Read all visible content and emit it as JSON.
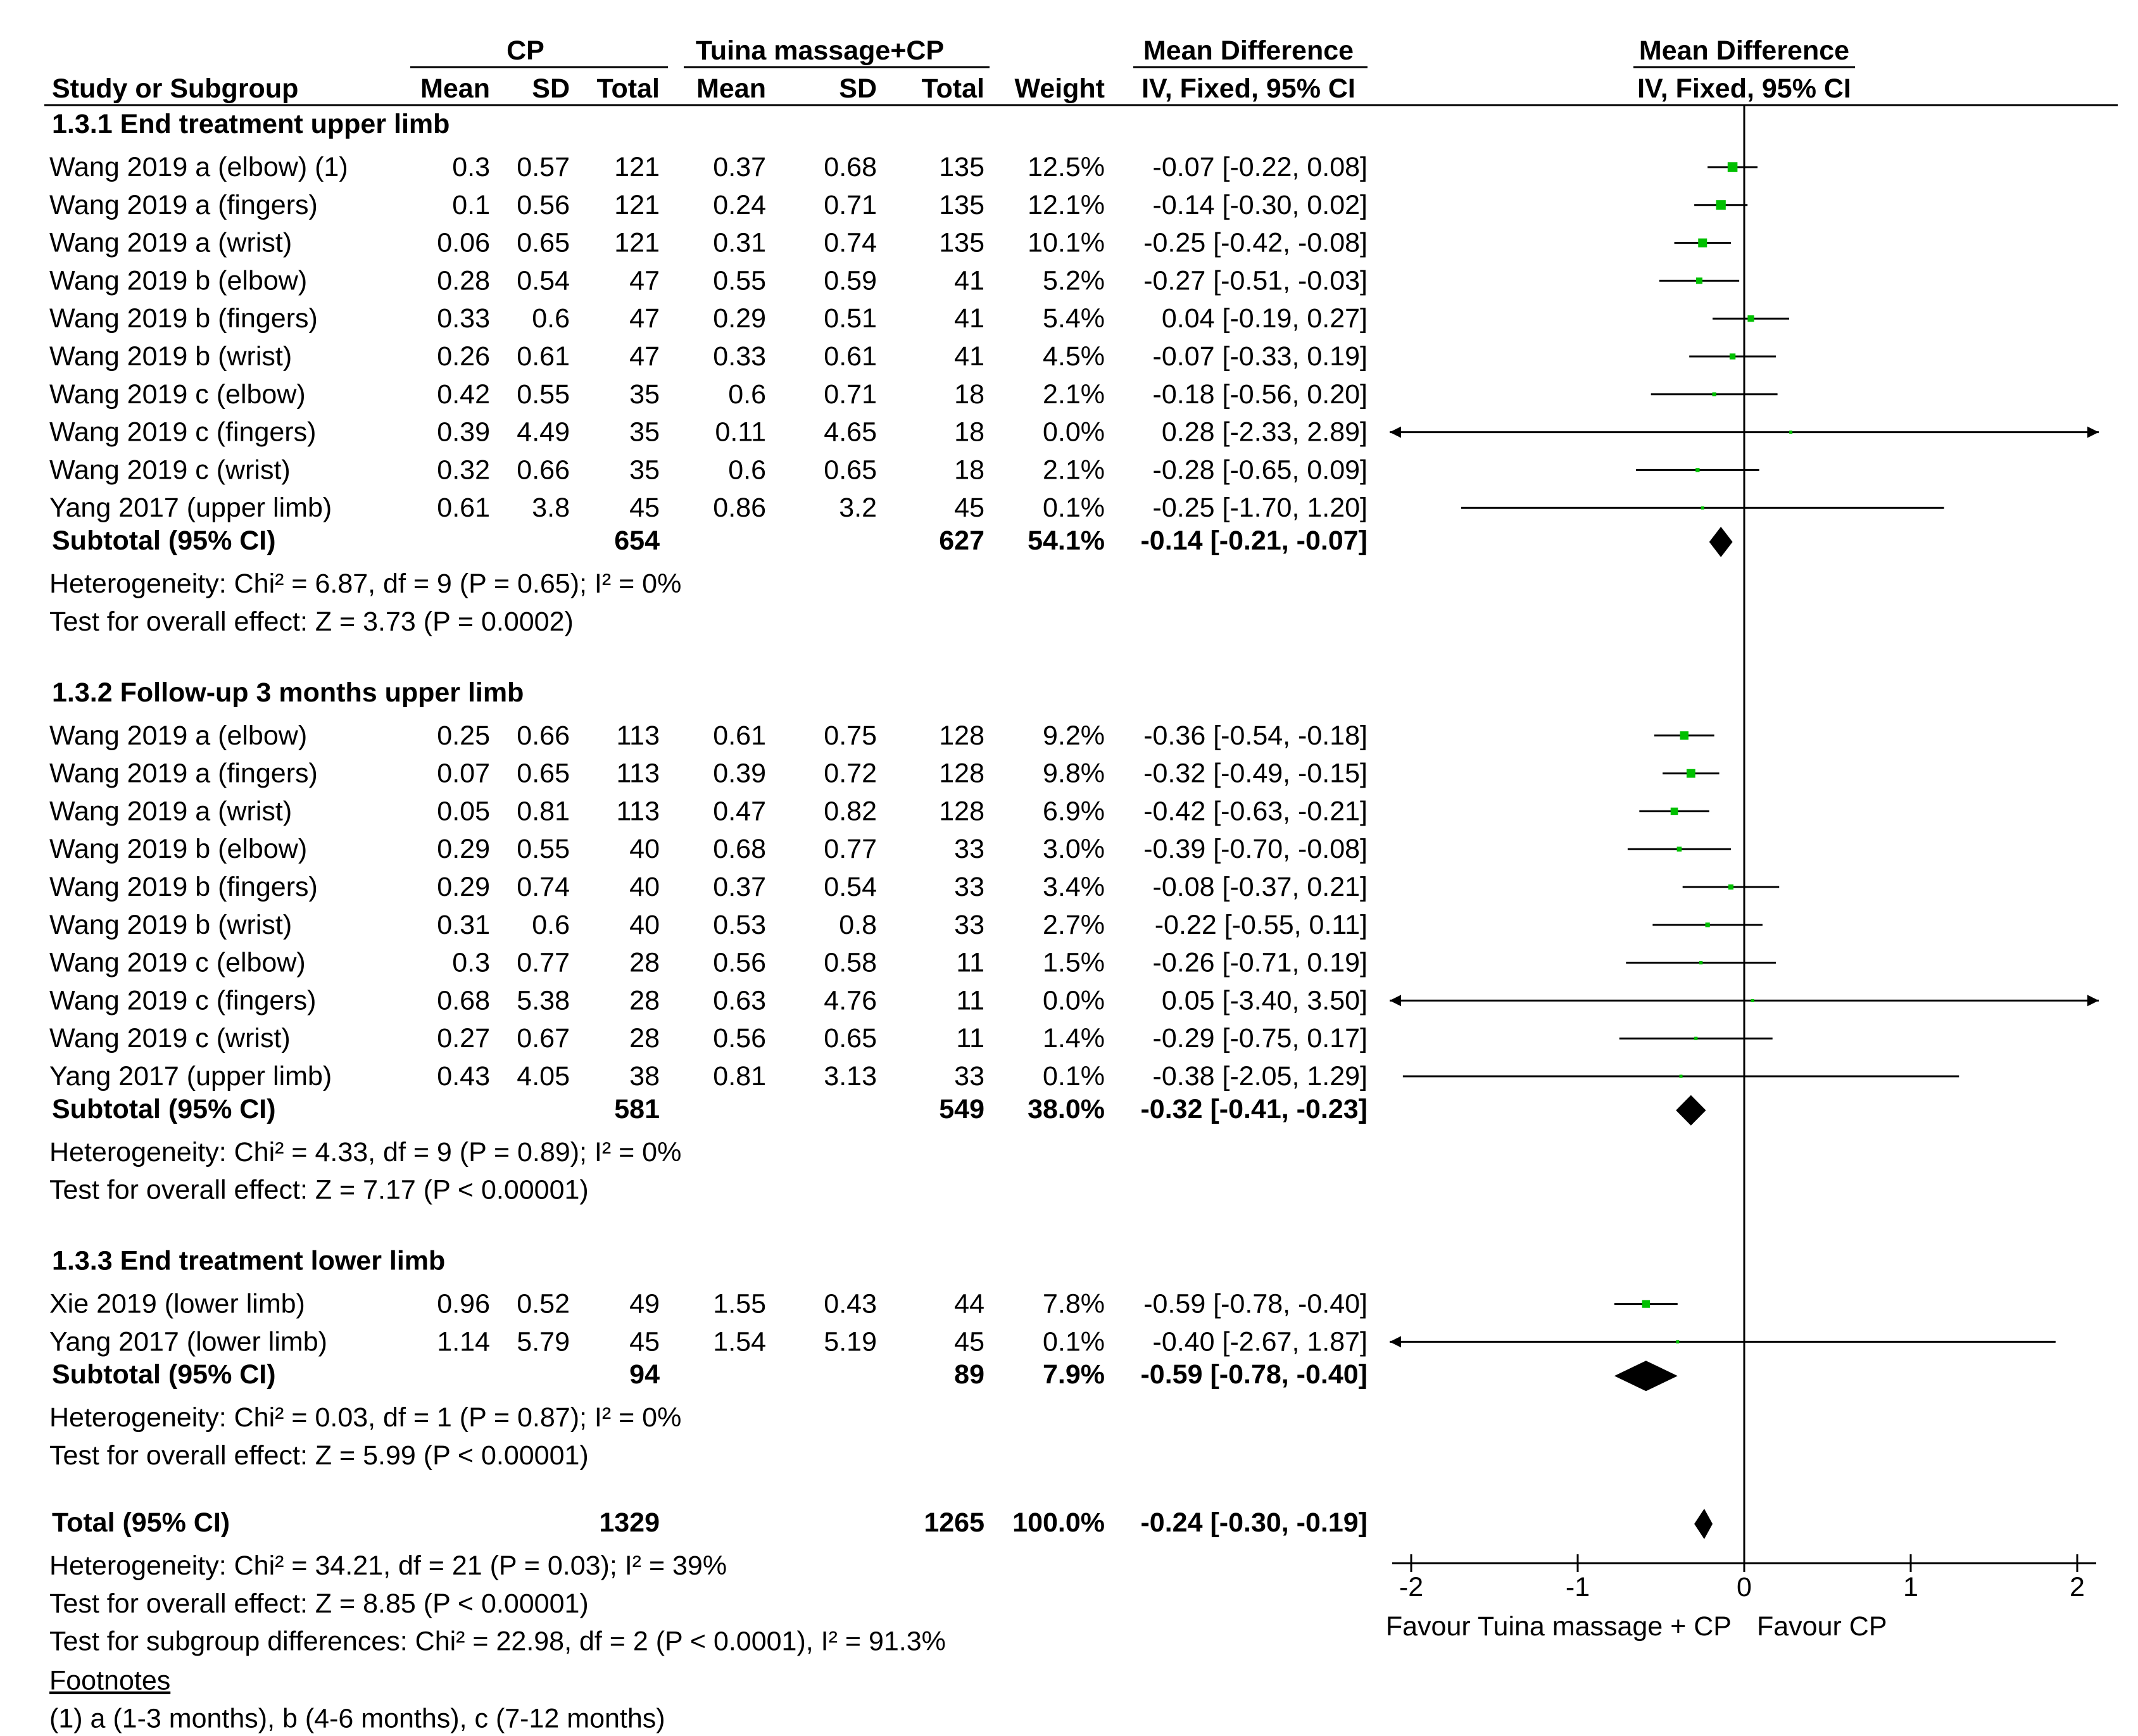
{
  "headers": {
    "cp": "CP",
    "tuina": "Tuina massage+CP",
    "md_text": "Mean Difference",
    "md_plot": "Mean Difference",
    "study": "Study or Subgroup",
    "mean1": "Mean",
    "sd1": "SD",
    "total1": "Total",
    "mean2": "Mean",
    "sd2": "SD",
    "total2": "Total",
    "weight": "Weight",
    "method_text": "IV, Fixed, 95% CI",
    "method_plot": "IV, Fixed, 95% CI"
  },
  "chart_data": {
    "type": "forest",
    "xlim": [
      -2,
      2
    ],
    "xticks": [
      "-2",
      "-1",
      "0",
      "1",
      "2"
    ],
    "favour_left": "Favour Tuina massage + CP",
    "favour_right": "Favour CP",
    "marker_color": "#00c000",
    "subgroups": [
      {
        "title": "1.3.1 End treatment upper limb",
        "studies": [
          {
            "name": "Wang 2019 a (elbow) (1)",
            "mean1": "0.3",
            "sd1": "0.57",
            "n1": "121",
            "mean2": "0.37",
            "sd2": "0.68",
            "n2": "135",
            "weight": "12.5%",
            "ci_text": "-0.07 [-0.22, 0.08]",
            "md": -0.07,
            "lo": -0.22,
            "hi": 0.08,
            "w": 12.5
          },
          {
            "name": "Wang 2019 a (fingers)",
            "mean1": "0.1",
            "sd1": "0.56",
            "n1": "121",
            "mean2": "0.24",
            "sd2": "0.71",
            "n2": "135",
            "weight": "12.1%",
            "ci_text": "-0.14 [-0.30, 0.02]",
            "md": -0.14,
            "lo": -0.3,
            "hi": 0.02,
            "w": 12.1
          },
          {
            "name": "Wang 2019 a (wrist)",
            "mean1": "0.06",
            "sd1": "0.65",
            "n1": "121",
            "mean2": "0.31",
            "sd2": "0.74",
            "n2": "135",
            "weight": "10.1%",
            "ci_text": "-0.25 [-0.42, -0.08]",
            "md": -0.25,
            "lo": -0.42,
            "hi": -0.08,
            "w": 10.1
          },
          {
            "name": "Wang 2019 b (elbow)",
            "mean1": "0.28",
            "sd1": "0.54",
            "n1": "47",
            "mean2": "0.55",
            "sd2": "0.59",
            "n2": "41",
            "weight": "5.2%",
            "ci_text": "-0.27 [-0.51, -0.03]",
            "md": -0.27,
            "lo": -0.51,
            "hi": -0.03,
            "w": 5.2
          },
          {
            "name": "Wang 2019 b (fingers)",
            "mean1": "0.33",
            "sd1": "0.6",
            "n1": "47",
            "mean2": "0.29",
            "sd2": "0.51",
            "n2": "41",
            "weight": "5.4%",
            "ci_text": "0.04 [-0.19, 0.27]",
            "md": 0.04,
            "lo": -0.19,
            "hi": 0.27,
            "w": 5.4
          },
          {
            "name": "Wang 2019 b (wrist)",
            "mean1": "0.26",
            "sd1": "0.61",
            "n1": "47",
            "mean2": "0.33",
            "sd2": "0.61",
            "n2": "41",
            "weight": "4.5%",
            "ci_text": "-0.07 [-0.33, 0.19]",
            "md": -0.07,
            "lo": -0.33,
            "hi": 0.19,
            "w": 4.5
          },
          {
            "name": "Wang 2019 c (elbow)",
            "mean1": "0.42",
            "sd1": "0.55",
            "n1": "35",
            "mean2": "0.6",
            "sd2": "0.71",
            "n2": "18",
            "weight": "2.1%",
            "ci_text": "-0.18 [-0.56, 0.20]",
            "md": -0.18,
            "lo": -0.56,
            "hi": 0.2,
            "w": 2.1
          },
          {
            "name": "Wang 2019 c (fingers)",
            "mean1": "0.39",
            "sd1": "4.49",
            "n1": "35",
            "mean2": "0.11",
            "sd2": "4.65",
            "n2": "18",
            "weight": "0.0%",
            "ci_text": "0.28 [-2.33, 2.89]",
            "md": 0.28,
            "lo": -2.33,
            "hi": 2.89,
            "w": 0.0
          },
          {
            "name": "Wang 2019 c (wrist)",
            "mean1": "0.32",
            "sd1": "0.66",
            "n1": "35",
            "mean2": "0.6",
            "sd2": "0.65",
            "n2": "18",
            "weight": "2.1%",
            "ci_text": "-0.28 [-0.65, 0.09]",
            "md": -0.28,
            "lo": -0.65,
            "hi": 0.09,
            "w": 2.1
          },
          {
            "name": "Yang 2017 (upper limb)",
            "mean1": "0.61",
            "sd1": "3.8",
            "n1": "45",
            "mean2": "0.86",
            "sd2": "3.2",
            "n2": "45",
            "weight": "0.1%",
            "ci_text": "-0.25 [-1.70, 1.20]",
            "md": -0.25,
            "lo": -1.7,
            "hi": 1.2,
            "w": 0.1
          }
        ],
        "subtotal": {
          "label": "Subtotal (95% CI)",
          "n1": "654",
          "n2": "627",
          "weight": "54.1%",
          "ci_text": "-0.14 [-0.21, -0.07]",
          "md": -0.14,
          "lo": -0.21,
          "hi": -0.07
        },
        "heterogeneity": "Heterogeneity: Chi² = 6.87, df = 9 (P = 0.65); I² = 0%",
        "overall": "Test for overall effect: Z = 3.73 (P = 0.0002)"
      },
      {
        "title": "1.3.2 Follow-up 3 months upper limb",
        "studies": [
          {
            "name": "Wang 2019 a (elbow)",
            "mean1": "0.25",
            "sd1": "0.66",
            "n1": "113",
            "mean2": "0.61",
            "sd2": "0.75",
            "n2": "128",
            "weight": "9.2%",
            "ci_text": "-0.36 [-0.54, -0.18]",
            "md": -0.36,
            "lo": -0.54,
            "hi": -0.18,
            "w": 9.2
          },
          {
            "name": "Wang 2019 a (fingers)",
            "mean1": "0.07",
            "sd1": "0.65",
            "n1": "113",
            "mean2": "0.39",
            "sd2": "0.72",
            "n2": "128",
            "weight": "9.8%",
            "ci_text": "-0.32 [-0.49, -0.15]",
            "md": -0.32,
            "lo": -0.49,
            "hi": -0.15,
            "w": 9.8
          },
          {
            "name": "Wang 2019 a (wrist)",
            "mean1": "0.05",
            "sd1": "0.81",
            "n1": "113",
            "mean2": "0.47",
            "sd2": "0.82",
            "n2": "128",
            "weight": "6.9%",
            "ci_text": "-0.42 [-0.63, -0.21]",
            "md": -0.42,
            "lo": -0.63,
            "hi": -0.21,
            "w": 6.9
          },
          {
            "name": "Wang 2019 b (elbow)",
            "mean1": "0.29",
            "sd1": "0.55",
            "n1": "40",
            "mean2": "0.68",
            "sd2": "0.77",
            "n2": "33",
            "weight": "3.0%",
            "ci_text": "-0.39 [-0.70, -0.08]",
            "md": -0.39,
            "lo": -0.7,
            "hi": -0.08,
            "w": 3.0
          },
          {
            "name": "Wang 2019 b (fingers)",
            "mean1": "0.29",
            "sd1": "0.74",
            "n1": "40",
            "mean2": "0.37",
            "sd2": "0.54",
            "n2": "33",
            "weight": "3.4%",
            "ci_text": "-0.08 [-0.37, 0.21]",
            "md": -0.08,
            "lo": -0.37,
            "hi": 0.21,
            "w": 3.4
          },
          {
            "name": "Wang 2019 b (wrist)",
            "mean1": "0.31",
            "sd1": "0.6",
            "n1": "40",
            "mean2": "0.53",
            "sd2": "0.8",
            "n2": "33",
            "weight": "2.7%",
            "ci_text": "-0.22 [-0.55, 0.11]",
            "md": -0.22,
            "lo": -0.55,
            "hi": 0.11,
            "w": 2.7
          },
          {
            "name": "Wang 2019 c (elbow)",
            "mean1": "0.3",
            "sd1": "0.77",
            "n1": "28",
            "mean2": "0.56",
            "sd2": "0.58",
            "n2": "11",
            "weight": "1.5%",
            "ci_text": "-0.26 [-0.71, 0.19]",
            "md": -0.26,
            "lo": -0.71,
            "hi": 0.19,
            "w": 1.5
          },
          {
            "name": "Wang 2019 c (fingers)",
            "mean1": "0.68",
            "sd1": "5.38",
            "n1": "28",
            "mean2": "0.63",
            "sd2": "4.76",
            "n2": "11",
            "weight": "0.0%",
            "ci_text": "0.05 [-3.40, 3.50]",
            "md": 0.05,
            "lo": -3.4,
            "hi": 3.5,
            "w": 0.0
          },
          {
            "name": "Wang 2019 c (wrist)",
            "mean1": "0.27",
            "sd1": "0.67",
            "n1": "28",
            "mean2": "0.56",
            "sd2": "0.65",
            "n2": "11",
            "weight": "1.4%",
            "ci_text": "-0.29 [-0.75, 0.17]",
            "md": -0.29,
            "lo": -0.75,
            "hi": 0.17,
            "w": 1.4
          },
          {
            "name": "Yang 2017 (upper limb)",
            "mean1": "0.43",
            "sd1": "4.05",
            "n1": "38",
            "mean2": "0.81",
            "sd2": "3.13",
            "n2": "33",
            "weight": "0.1%",
            "ci_text": "-0.38 [-2.05, 1.29]",
            "md": -0.38,
            "lo": -2.05,
            "hi": 1.29,
            "w": 0.1
          }
        ],
        "subtotal": {
          "label": "Subtotal (95% CI)",
          "n1": "581",
          "n2": "549",
          "weight": "38.0%",
          "ci_text": "-0.32 [-0.41, -0.23]",
          "md": -0.32,
          "lo": -0.41,
          "hi": -0.23
        },
        "heterogeneity": "Heterogeneity: Chi² = 4.33, df = 9 (P = 0.89); I² = 0%",
        "overall": "Test for overall effect: Z = 7.17 (P < 0.00001)"
      },
      {
        "title": "1.3.3 End treatment lower limb",
        "studies": [
          {
            "name": "Xie 2019 (lower limb)",
            "mean1": "0.96",
            "sd1": "0.52",
            "n1": "49",
            "mean2": "1.55",
            "sd2": "0.43",
            "n2": "44",
            "weight": "7.8%",
            "ci_text": "-0.59 [-0.78, -0.40]",
            "md": -0.59,
            "lo": -0.78,
            "hi": -0.4,
            "w": 7.8
          },
          {
            "name": "Yang 2017 (lower limb)",
            "mean1": "1.14",
            "sd1": "5.79",
            "n1": "45",
            "mean2": "1.54",
            "sd2": "5.19",
            "n2": "45",
            "weight": "0.1%",
            "ci_text": "-0.40 [-2.67, 1.87]",
            "md": -0.4,
            "lo": -2.67,
            "hi": 1.87,
            "w": 0.1
          }
        ],
        "subtotal": {
          "label": "Subtotal (95% CI)",
          "n1": "94",
          "n2": "89",
          "weight": "7.9%",
          "ci_text": "-0.59 [-0.78, -0.40]",
          "md": -0.59,
          "lo": -0.78,
          "hi": -0.4
        },
        "heterogeneity": "Heterogeneity: Chi² = 0.03, df = 1 (P = 0.87); I² = 0%",
        "overall": "Test for overall effect: Z = 5.99 (P < 0.00001)"
      }
    ],
    "total": {
      "label": "Total (95% CI)",
      "n1": "1329",
      "n2": "1265",
      "weight": "100.0%",
      "ci_text": "-0.24 [-0.30, -0.19]",
      "md": -0.24,
      "lo": -0.3,
      "hi": -0.19
    },
    "total_heterogeneity": "Heterogeneity: Chi² = 34.21, df = 21 (P = 0.03); I² = 39%",
    "total_overall": "Test for overall effect: Z = 8.85 (P < 0.00001)",
    "subgroup_diff": "Test for subgroup differences: Chi² = 22.98, df = 2 (P < 0.0001), I² = 91.3%"
  },
  "footnotes": {
    "title": "Footnotes",
    "items": [
      "(1) a (1-3 months), b (4-6 months), c (7-12 months)"
    ]
  }
}
